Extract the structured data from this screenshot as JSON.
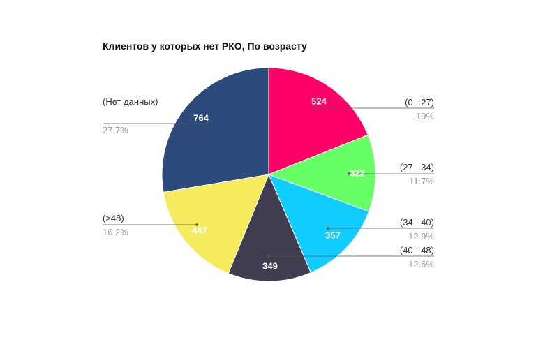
{
  "chart_data": {
    "type": "pie",
    "title": "Клиентов у которых нет РКО, По возрасту",
    "categories": [
      "(0 - 27)",
      "(27 - 34)",
      "(34 - 40)",
      "(40 - 48)",
      "(>48)",
      "(Нет данных)"
    ],
    "values": [
      524,
      322,
      357,
      349,
      447,
      764
    ],
    "percent_labels": [
      "19%",
      "11.7%",
      "12.9%",
      "12.6%",
      "16.2%",
      "27.7%"
    ],
    "colors": [
      "#ff0066",
      "#66ff66",
      "#11ccff",
      "#3f3d4f",
      "#f5eb5c",
      "#2c4a7c"
    ]
  }
}
